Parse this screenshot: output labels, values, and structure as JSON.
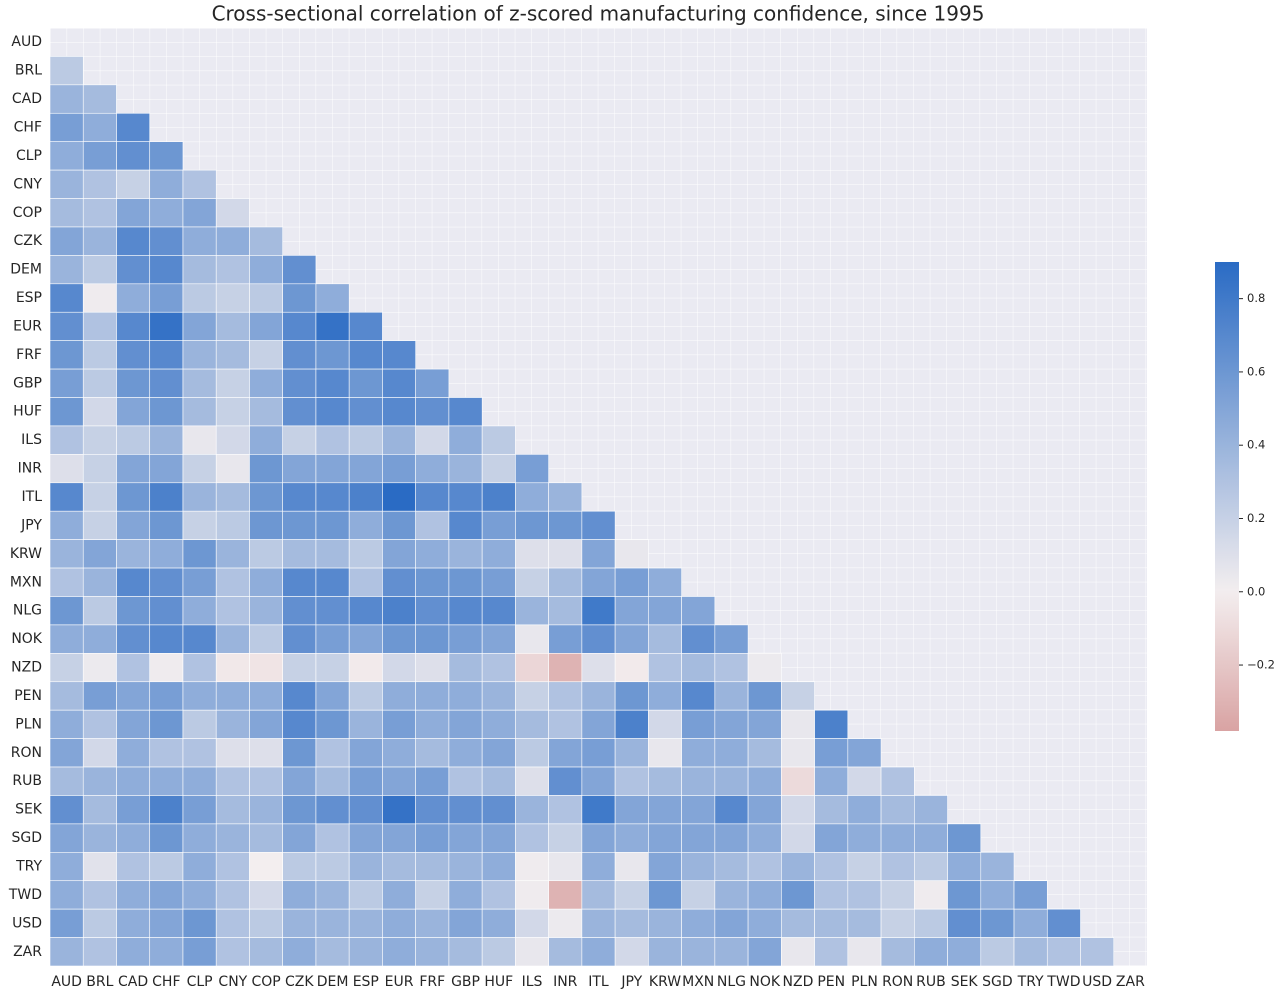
{
  "chart_data": {
    "type": "heatmap",
    "title": "Cross-sectional correlation of z-scored manufacturing confidence, since 1995",
    "categories": [
      "AUD",
      "BRL",
      "CAD",
      "CHF",
      "CLP",
      "CNY",
      "COP",
      "CZK",
      "DEM",
      "ESP",
      "EUR",
      "FRF",
      "GBP",
      "HUF",
      "ILS",
      "INR",
      "ITL",
      "JPY",
      "KRW",
      "MXN",
      "NLG",
      "NOK",
      "NZD",
      "PEN",
      "PLN",
      "RON",
      "RUB",
      "SEK",
      "SGD",
      "TRY",
      "TWD",
      "USD",
      "ZAR"
    ],
    "values": [
      [],
      [
        0.25
      ],
      [
        0.4,
        0.35
      ],
      [
        0.55,
        0.45,
        0.7
      ],
      [
        0.45,
        0.55,
        0.65,
        0.6
      ],
      [
        0.4,
        0.3,
        0.2,
        0.45,
        0.3
      ],
      [
        0.35,
        0.3,
        0.5,
        0.45,
        0.5,
        0.15
      ],
      [
        0.5,
        0.4,
        0.7,
        0.65,
        0.45,
        0.45,
        0.35
      ],
      [
        0.4,
        0.25,
        0.65,
        0.7,
        0.35,
        0.3,
        0.45,
        0.65
      ],
      [
        0.7,
        0.02,
        0.45,
        0.55,
        0.25,
        0.2,
        0.25,
        0.6,
        0.45
      ],
      [
        0.65,
        0.3,
        0.7,
        0.85,
        0.5,
        0.35,
        0.5,
        0.7,
        0.85,
        0.7
      ],
      [
        0.6,
        0.25,
        0.65,
        0.7,
        0.4,
        0.35,
        0.2,
        0.65,
        0.6,
        0.7,
        0.7
      ],
      [
        0.55,
        0.25,
        0.6,
        0.65,
        0.35,
        0.2,
        0.45,
        0.65,
        0.7,
        0.6,
        0.7,
        0.55
      ],
      [
        0.6,
        0.15,
        0.5,
        0.6,
        0.35,
        0.2,
        0.35,
        0.65,
        0.7,
        0.65,
        0.7,
        0.65,
        0.7
      ],
      [
        0.3,
        0.2,
        0.25,
        0.4,
        0.05,
        0.15,
        0.45,
        0.2,
        0.3,
        0.25,
        0.4,
        0.15,
        0.45,
        0.25
      ],
      [
        0.1,
        0.2,
        0.5,
        0.5,
        0.2,
        0.05,
        0.6,
        0.5,
        0.5,
        0.5,
        0.55,
        0.45,
        0.4,
        0.2,
        0.55
      ],
      [
        0.7,
        0.2,
        0.6,
        0.75,
        0.4,
        0.35,
        0.6,
        0.7,
        0.7,
        0.75,
        0.9,
        0.7,
        0.7,
        0.75,
        0.45,
        0.4
      ],
      [
        0.45,
        0.2,
        0.5,
        0.6,
        0.2,
        0.25,
        0.6,
        0.6,
        0.6,
        0.45,
        0.6,
        0.3,
        0.7,
        0.55,
        0.6,
        0.6,
        0.65
      ],
      [
        0.4,
        0.5,
        0.4,
        0.45,
        0.6,
        0.4,
        0.25,
        0.35,
        0.35,
        0.25,
        0.5,
        0.45,
        0.4,
        0.45,
        0.1,
        0.1,
        0.5,
        0.05
      ],
      [
        0.3,
        0.4,
        0.7,
        0.65,
        0.55,
        0.3,
        0.45,
        0.7,
        0.7,
        0.3,
        0.65,
        0.6,
        0.6,
        0.55,
        0.2,
        0.35,
        0.5,
        0.55,
        0.45
      ],
      [
        0.6,
        0.25,
        0.6,
        0.65,
        0.45,
        0.3,
        0.4,
        0.65,
        0.65,
        0.7,
        0.75,
        0.65,
        0.7,
        0.7,
        0.4,
        0.35,
        0.8,
        0.5,
        0.5,
        0.5
      ],
      [
        0.45,
        0.45,
        0.65,
        0.7,
        0.7,
        0.4,
        0.25,
        0.65,
        0.55,
        0.5,
        0.6,
        0.6,
        0.55,
        0.5,
        0.05,
        0.55,
        0.65,
        0.5,
        0.35,
        0.65,
        0.55
      ],
      [
        0.2,
        0.03,
        0.3,
        0.02,
        0.3,
        -0.03,
        -0.05,
        0.2,
        0.2,
        -0.02,
        0.15,
        0.1,
        0.35,
        0.3,
        -0.12,
        -0.3,
        0.1,
        -0.02,
        0.3,
        0.35,
        0.3,
        0.03
      ],
      [
        0.35,
        0.55,
        0.5,
        0.55,
        0.45,
        0.45,
        0.45,
        0.7,
        0.5,
        0.25,
        0.45,
        0.45,
        0.45,
        0.4,
        0.2,
        0.3,
        0.4,
        0.6,
        0.45,
        0.7,
        0.4,
        0.6,
        0.2
      ],
      [
        0.45,
        0.3,
        0.5,
        0.6,
        0.25,
        0.4,
        0.5,
        0.7,
        0.6,
        0.4,
        0.55,
        0.45,
        0.5,
        0.45,
        0.35,
        0.3,
        0.5,
        0.75,
        0.15,
        0.55,
        0.5,
        0.5,
        0.05,
        0.75
      ],
      [
        0.5,
        0.15,
        0.45,
        0.3,
        0.3,
        0.1,
        0.1,
        0.6,
        0.3,
        0.5,
        0.45,
        0.35,
        0.45,
        0.5,
        0.25,
        0.5,
        0.55,
        0.4,
        0.05,
        0.45,
        0.45,
        0.35,
        0.05,
        0.55,
        0.5
      ],
      [
        0.35,
        0.4,
        0.45,
        0.45,
        0.45,
        0.3,
        0.3,
        0.5,
        0.35,
        0.55,
        0.5,
        0.55,
        0.3,
        0.35,
        0.1,
        0.65,
        0.5,
        0.3,
        0.35,
        0.4,
        0.4,
        0.45,
        -0.1,
        0.45,
        0.15,
        0.3
      ],
      [
        0.65,
        0.35,
        0.55,
        0.75,
        0.55,
        0.35,
        0.4,
        0.6,
        0.65,
        0.65,
        0.85,
        0.65,
        0.65,
        0.65,
        0.4,
        0.3,
        0.8,
        0.5,
        0.5,
        0.5,
        0.7,
        0.5,
        0.15,
        0.35,
        0.45,
        0.35,
        0.4
      ],
      [
        0.5,
        0.4,
        0.45,
        0.6,
        0.45,
        0.4,
        0.35,
        0.5,
        0.3,
        0.5,
        0.5,
        0.55,
        0.5,
        0.5,
        0.3,
        0.2,
        0.5,
        0.45,
        0.5,
        0.5,
        0.5,
        0.45,
        0.15,
        0.5,
        0.45,
        0.45,
        0.45,
        0.6
      ],
      [
        0.45,
        0.08,
        0.3,
        0.25,
        0.45,
        0.3,
        0.0,
        0.25,
        0.25,
        0.4,
        0.35,
        0.35,
        0.4,
        0.45,
        0.02,
        0.05,
        0.45,
        0.05,
        0.5,
        0.4,
        0.35,
        0.3,
        0.4,
        0.3,
        0.2,
        0.3,
        0.25,
        0.45,
        0.4
      ],
      [
        0.45,
        0.3,
        0.45,
        0.5,
        0.45,
        0.3,
        0.15,
        0.45,
        0.4,
        0.25,
        0.45,
        0.2,
        0.45,
        0.3,
        0.02,
        -0.3,
        0.35,
        0.2,
        0.6,
        0.2,
        0.4,
        0.45,
        0.6,
        0.3,
        0.3,
        0.2,
        0.02,
        0.6,
        0.45,
        0.55
      ],
      [
        0.55,
        0.25,
        0.45,
        0.5,
        0.6,
        0.3,
        0.25,
        0.4,
        0.4,
        0.4,
        0.45,
        0.4,
        0.5,
        0.45,
        0.15,
        0.03,
        0.4,
        0.35,
        0.4,
        0.45,
        0.5,
        0.45,
        0.35,
        0.35,
        0.35,
        0.2,
        0.25,
        0.65,
        0.6,
        0.45,
        0.65
      ],
      [
        0.4,
        0.3,
        0.45,
        0.45,
        0.55,
        0.3,
        0.35,
        0.45,
        0.35,
        0.4,
        0.45,
        0.4,
        0.35,
        0.25,
        0.05,
        0.35,
        0.45,
        0.15,
        0.4,
        0.4,
        0.4,
        0.5,
        0.05,
        0.3,
        0.05,
        0.35,
        0.45,
        0.45,
        0.25,
        0.35,
        0.3,
        0.3
      ]
    ],
    "colormap": [
      "#d9a3a3",
      "#f3eeef",
      "#2a6bc4"
    ],
    "zlim": [
      -0.38,
      0.9
    ],
    "zticks": [
      {
        "value": -0.2,
        "label": "−0.2"
      },
      {
        "value": 0,
        "label": "0.0"
      },
      0.2,
      0.4,
      0.6,
      0.8
    ]
  }
}
